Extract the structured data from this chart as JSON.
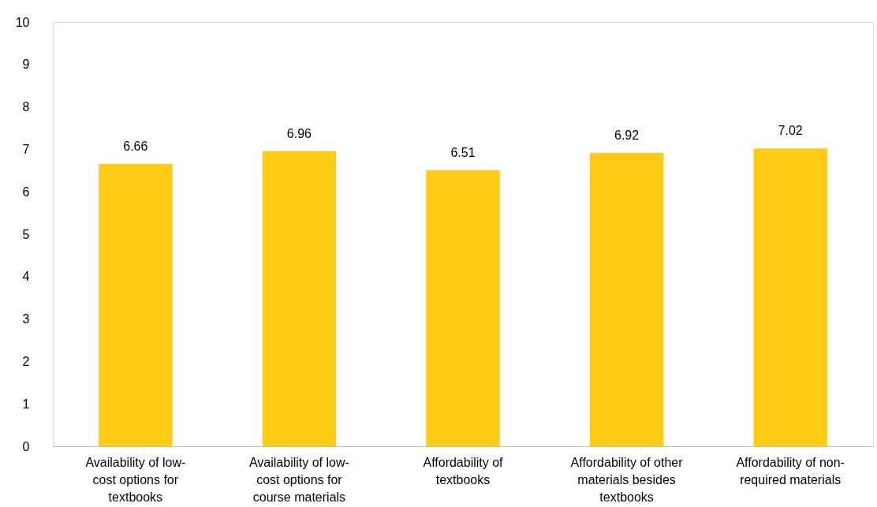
{
  "chart_data": {
    "type": "bar",
    "categories": [
      "Availability of low-cost options for textbooks",
      "Availability of low-cost options for course materials",
      "Affordability of textbooks",
      "Affordability of other materials besides textbooks",
      "Affordability of non-required materials"
    ],
    "values": [
      6.66,
      6.96,
      6.51,
      6.92,
      7.02
    ],
    "color": "#fecc17",
    "ylim": [
      0,
      10
    ],
    "yticks": [
      0,
      1,
      2,
      3,
      4,
      5,
      6,
      7,
      8,
      9,
      10
    ],
    "grid": false,
    "data_labels": true
  }
}
